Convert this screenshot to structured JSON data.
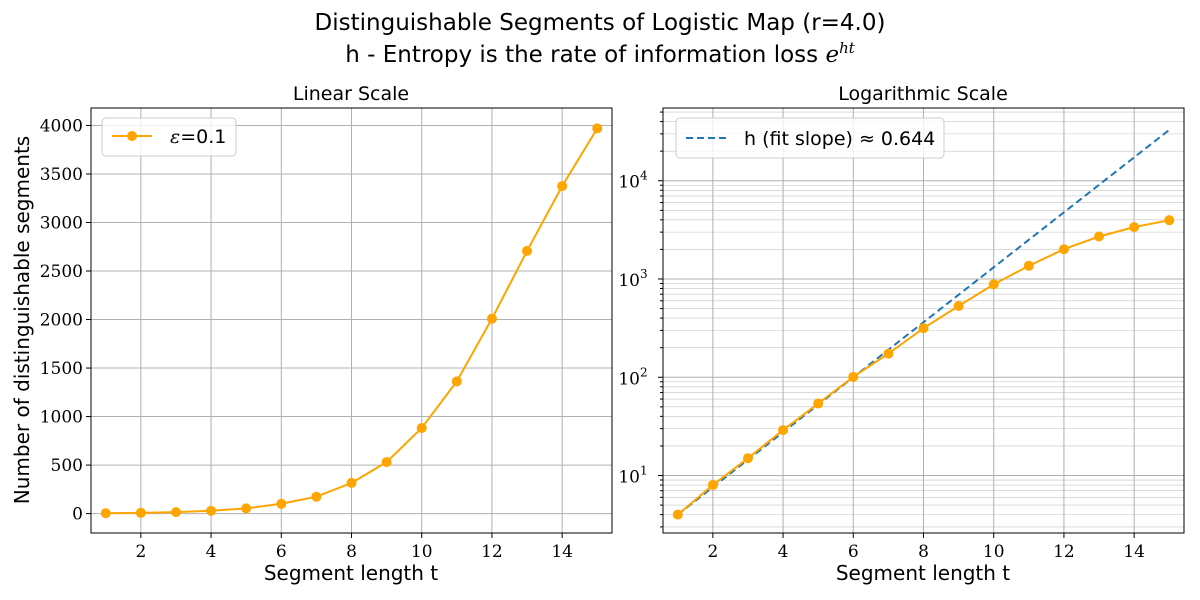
{
  "figure": {
    "title_line1": "Distinguishable Segments of Logistic Map (r=4.0)",
    "title_line2_text": "h - Entropy is the rate of information loss ",
    "title_line2_math": "e",
    "title_line2_math_sup": "ht"
  },
  "chart_data": [
    {
      "type": "line",
      "title": "Linear Scale",
      "xlabel": "Segment length t",
      "ylabel": "Number of distinguishable segments",
      "xlim": [
        0.58,
        15.42
      ],
      "ylim": [
        -200,
        4180
      ],
      "xticks": [
        2,
        4,
        6,
        8,
        10,
        12,
        14
      ],
      "yticks": [
        0,
        500,
        1000,
        1500,
        2000,
        2500,
        3000,
        3500,
        4000
      ],
      "grid": true,
      "legend_position": "top-left",
      "x": [
        1,
        2,
        3,
        4,
        5,
        6,
        7,
        8,
        9,
        10,
        11,
        12,
        13,
        14,
        15
      ],
      "series": [
        {
          "name_math": "ε",
          "name_text": "=0.1",
          "color": "#FFA500",
          "marker": "circle",
          "style": "solid",
          "values": [
            4,
            8,
            15,
            29,
            54,
            101,
            174,
            316,
            531,
            882,
            1363,
            2009,
            2707,
            3375,
            3970
          ]
        }
      ]
    },
    {
      "type": "line",
      "title": "Logarithmic Scale",
      "xlabel": "Segment length t",
      "yscale": "log",
      "xlim": [
        0.58,
        15.42
      ],
      "ylim": [
        2.6,
        55000
      ],
      "xticks": [
        2,
        4,
        6,
        8,
        10,
        12,
        14
      ],
      "yticks": [
        10,
        100,
        1000,
        10000
      ],
      "ytick_labels": [
        {
          "base": "10",
          "exp": "1"
        },
        {
          "base": "10",
          "exp": "2"
        },
        {
          "base": "10",
          "exp": "3"
        },
        {
          "base": "10",
          "exp": "4"
        }
      ],
      "grid": true,
      "grid_minor": true,
      "legend_position": "top-left",
      "x": [
        1,
        2,
        3,
        4,
        5,
        6,
        7,
        8,
        9,
        10,
        11,
        12,
        13,
        14,
        15
      ],
      "series": [
        {
          "color": "#FFA500",
          "marker": "circle",
          "style": "solid",
          "values": [
            4,
            8,
            15,
            29,
            54,
            101,
            174,
            316,
            531,
            882,
            1363,
            2009,
            2707,
            3375,
            3970
          ]
        },
        {
          "name_text": "h (fit slope) ",
          "name_math": "≈ 0.644",
          "color": "#1f77b4",
          "style": "dashed",
          "x_range": [
            1,
            15
          ],
          "slope": 0.644,
          "y_at_x1": 4
        }
      ]
    }
  ]
}
